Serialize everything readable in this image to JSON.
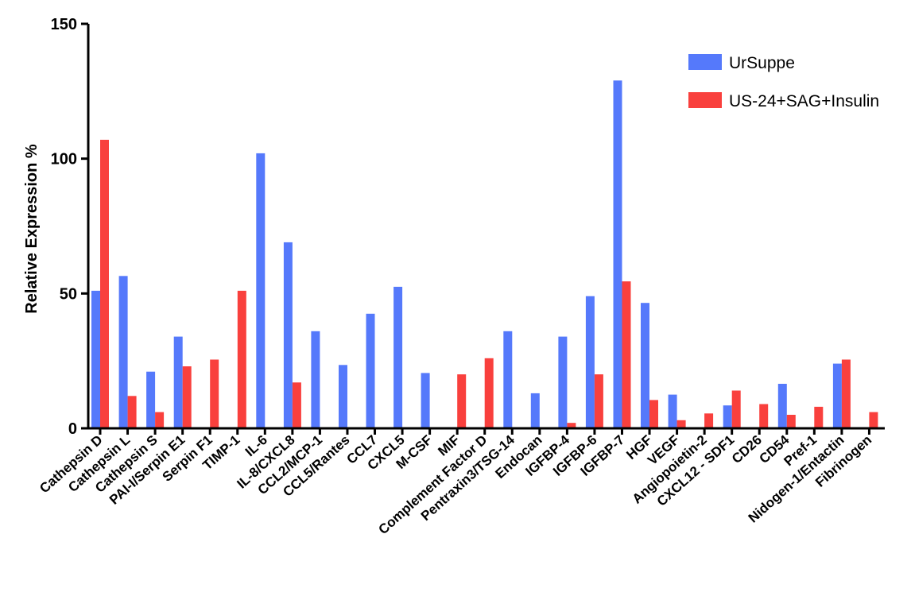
{
  "chart_data": {
    "type": "bar",
    "title": "",
    "xlabel": "",
    "ylabel": "Relative Expression %",
    "ylim": [
      0,
      150
    ],
    "yticks": [
      0,
      50,
      100,
      150
    ],
    "grid": false,
    "legend_position": "top-right",
    "categories": [
      "Cathepsin D",
      "Cathepsin L",
      "Cathepsin S",
      "PAI-I/Serpin E1",
      "Serpin F1",
      "TIMP-1",
      "IL-6",
      "IL-8/CXCL8",
      "CCL2/MCP-1",
      "CCL5/Rantes",
      "CCL7",
      "CXCL5",
      "M-CSF",
      "MIF",
      "Complement Factor D",
      "Pentraxin3/TSG-14",
      "Endocan",
      "IGFBP-4",
      "IGFBP-6",
      "IGFBP-7",
      "HGF",
      "VEGF",
      "Angiopoietin-2",
      "CXCL12 - SDF1",
      "CD26",
      "CD54",
      "Pref-1",
      "Nidogen-1/Entactin",
      "Fibrinogen"
    ],
    "series": [
      {
        "name": "UrSuppe",
        "color": "#5579fb",
        "values": [
          51,
          56.5,
          21,
          34,
          0,
          0,
          102,
          69,
          36,
          23.5,
          42.5,
          52.5,
          20.5,
          0,
          0,
          36,
          13,
          34,
          49,
          129,
          46.5,
          12.5,
          0,
          8.5,
          0,
          16.5,
          0,
          24,
          0
        ]
      },
      {
        "name": "US-24+SAG+Insulin",
        "color": "#f9403d",
        "values": [
          107,
          12,
          6,
          23,
          25.5,
          51,
          0,
          17,
          0,
          0,
          0,
          0,
          0,
          20,
          26,
          0,
          0,
          2,
          20,
          54.5,
          10.5,
          3,
          5.5,
          14,
          9,
          5,
          8,
          25.5,
          6
        ]
      }
    ]
  }
}
